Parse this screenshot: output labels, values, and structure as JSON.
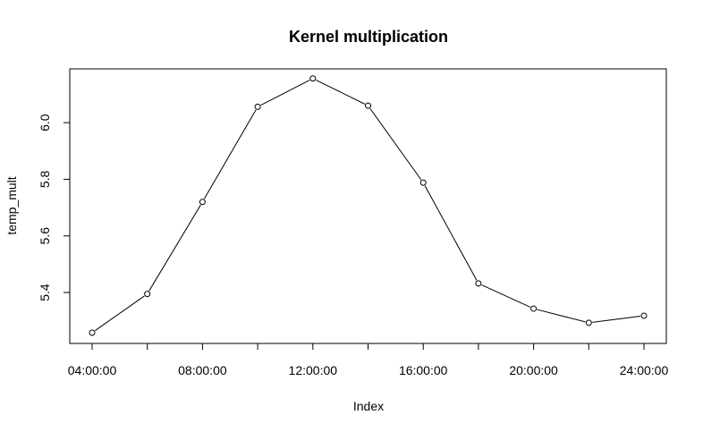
{
  "chart_data": {
    "type": "line",
    "title": "Kernel multiplication",
    "xlabel": "Index",
    "ylabel": "temp_mult",
    "x": [
      "04:00:00",
      "06:00:00",
      "08:00:00",
      "10:00:00",
      "12:00:00",
      "14:00:00",
      "16:00:00",
      "18:00:00",
      "20:00:00",
      "22:00:00",
      "24:00:00"
    ],
    "x_tick_labels": [
      "04:00:00",
      "08:00:00",
      "12:00:00",
      "16:00:00",
      "20:00:00",
      "24:00:00"
    ],
    "y_ticks": [
      "5.4",
      "5.6",
      "5.8",
      "6.0"
    ],
    "ylim": [
      5.22,
      6.19
    ],
    "grid": false,
    "series": [
      {
        "values": [
          5.258,
          5.395,
          5.72,
          6.056,
          6.156,
          6.06,
          5.788,
          5.432,
          5.343,
          5.293,
          5.318
        ]
      }
    ]
  }
}
